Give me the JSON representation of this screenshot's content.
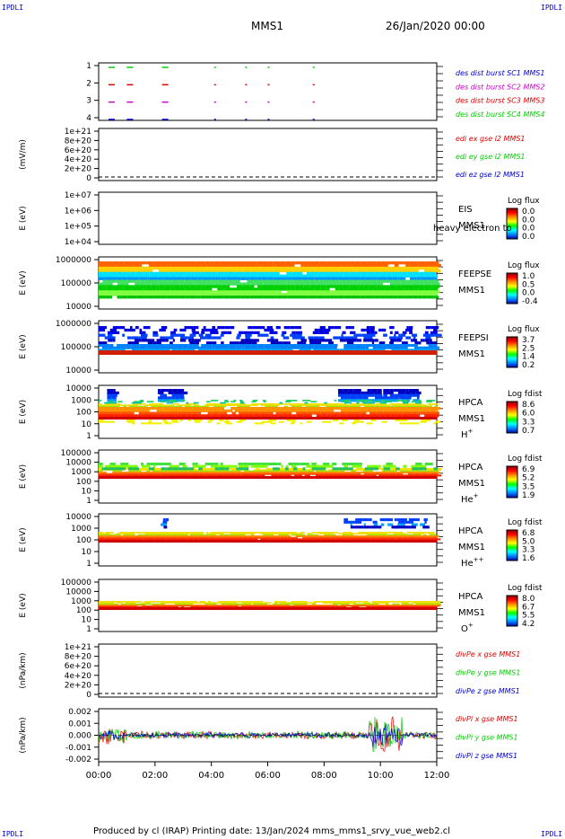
{
  "corner_label": "IPDLI",
  "header": {
    "spacecraft": "MMS1",
    "datetime": "26/Jan/2020 00:00"
  },
  "footer": {
    "text": "Produced by cl (IRAP)   Printing date: 13/Jan/2024   mms_mms1_srvy_vue_web2.cl"
  },
  "colors": {
    "red": "#e00000",
    "green": "#00d000",
    "blue": "#0000d0",
    "magenta": "#d000d0"
  },
  "chart_data": [
    {
      "id": "burst",
      "type": "scatter",
      "yticks": [
        "1",
        "2",
        "3",
        "4"
      ],
      "legend": [
        {
          "label": "des dist burst SC1 MMS1",
          "color": "#0000d0"
        },
        {
          "label": "des dist burst SC2 MMS2",
          "color": "#d000d0"
        },
        {
          "label": "des dist burst SC3 MMS3",
          "color": "#e00000"
        },
        {
          "label": "des dist burst SC4 MMS4",
          "color": "#00d000"
        }
      ],
      "x_hours": [
        0.35,
        1.0,
        2.25,
        4.1,
        5.2,
        6.0,
        7.6
      ],
      "note": ""
    },
    {
      "id": "edi",
      "type": "line",
      "ylabel": "(mV/m)",
      "yticks": [
        "1e+21",
        "8e+20",
        "6e+20",
        "4e+20",
        "2e+20",
        "0"
      ],
      "legend": [
        {
          "label": "edi ex gse l2 MMS1",
          "color": "#e00000"
        },
        {
          "label": "edi ey gse l2 MMS1",
          "color": "#00d000"
        },
        {
          "label": "edi ez gse l2 MMS1",
          "color": "#0000d0"
        }
      ]
    },
    {
      "id": "eis",
      "type": "heatmap",
      "ylabel": "E (eV)",
      "yticks": [
        "1e+07",
        "1e+06",
        "1e+05",
        "1e+04"
      ],
      "side": [
        "EIS",
        "MMS1"
      ],
      "overlay": "heavy electron to",
      "cb_title": "Log flux",
      "cb_ticks": [
        "0.0",
        "0.0",
        "0.0",
        "0.0"
      ]
    },
    {
      "id": "feepse",
      "type": "heatmap",
      "ylabel": "E (eV)",
      "yticks": [
        "1000000",
        "100000",
        "10000"
      ],
      "side": [
        "FEEPSE",
        "MMS1"
      ],
      "cb_title": "Log flux",
      "cb_ticks": [
        "1.0",
        "0.5",
        "0.0",
        "-0.4"
      ]
    },
    {
      "id": "feepsi",
      "type": "heatmap",
      "ylabel": "E (eV)",
      "yticks": [
        "1000000",
        "100000",
        "10000"
      ],
      "side": [
        "FEEPSI",
        "MMS1"
      ],
      "cb_title": "Log flux",
      "cb_ticks": [
        "3.7",
        "2.5",
        "1.4",
        "0.2"
      ]
    },
    {
      "id": "hpca_h",
      "type": "heatmap",
      "ylabel": "E (eV)",
      "yticks": [
        "10000",
        "1000",
        "100",
        "10",
        "1"
      ],
      "side": [
        "HPCA",
        "MMS1",
        "H+"
      ],
      "cb_title": "Log fdist",
      "cb_ticks": [
        "8.6",
        "6.0",
        "3.3",
        "0.7"
      ]
    },
    {
      "id": "hpca_he",
      "type": "heatmap",
      "ylabel": "E (eV)",
      "yticks": [
        "100000",
        "10000",
        "1000",
        "100",
        "10",
        "1"
      ],
      "side": [
        "HPCA",
        "MMS1",
        "He+"
      ],
      "cb_title": "Log fdist",
      "cb_ticks": [
        "6.9",
        "5.2",
        "3.5",
        "1.9"
      ]
    },
    {
      "id": "hpca_hepp",
      "type": "heatmap",
      "ylabel": "E (eV)",
      "yticks": [
        "10000",
        "1000",
        "100",
        "10",
        "1"
      ],
      "side": [
        "HPCA",
        "MMS1",
        "He++"
      ],
      "cb_title": "Log fdist",
      "cb_ticks": [
        "6.8",
        "5.0",
        "3.3",
        "1.6"
      ]
    },
    {
      "id": "hpca_o",
      "type": "heatmap",
      "ylabel": "E (eV)",
      "yticks": [
        "100000",
        "10000",
        "1000",
        "100",
        "10",
        "1"
      ],
      "side": [
        "HPCA",
        "MMS1",
        "O+"
      ],
      "cb_title": "Log fdist",
      "cb_ticks": [
        "8.0",
        "6.7",
        "5.5",
        "4.2"
      ]
    },
    {
      "id": "divpe",
      "type": "line",
      "ylabel": "(nPa/km)",
      "yticks": [
        "1e+21",
        "8e+20",
        "6e+20",
        "4e+20",
        "2e+20",
        "0"
      ],
      "legend": [
        {
          "label": "divPe x gse MMS1",
          "color": "#e00000"
        },
        {
          "label": "divPe y gse MMS1",
          "color": "#00d000"
        },
        {
          "label": "divPe z gse MMS1",
          "color": "#0000d0"
        }
      ]
    },
    {
      "id": "divpi",
      "type": "line",
      "ylabel": "(nPa/km)",
      "yticks": [
        "0.002",
        "0.001",
        "0.000",
        "-0.001",
        "-0.002"
      ],
      "legend": [
        {
          "label": "divPi x gse MMS1",
          "color": "#e00000"
        },
        {
          "label": "divPi y gse MMS1",
          "color": "#00d000"
        },
        {
          "label": "divPi z gse MMS1",
          "color": "#0000d0"
        }
      ]
    }
  ],
  "x_axis": {
    "ticks": [
      "00:00",
      "02:00",
      "04:00",
      "06:00",
      "08:00",
      "10:00",
      "12:00"
    ]
  }
}
